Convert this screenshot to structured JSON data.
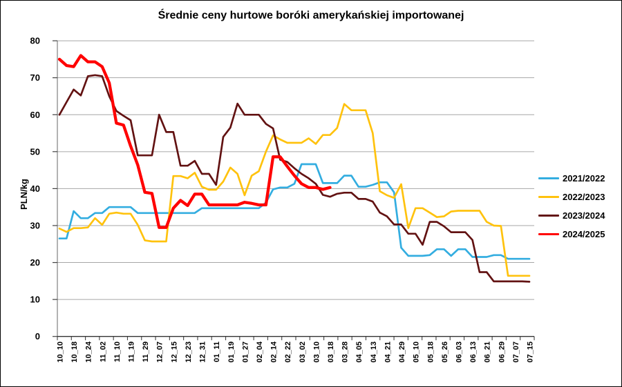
{
  "title": "Średnie ceny hurtowe boróki amerykańskiej importowanej",
  "y_axis": {
    "label": "PLN/kg",
    "ticks": [
      0,
      10,
      20,
      30,
      40,
      50,
      60,
      70,
      80
    ]
  },
  "colors": {
    "grid": "#A6A6A6",
    "axis": "#808080",
    "tick": "#404040",
    "x_axis_line": "#333333",
    "text": "#000000"
  },
  "chart_data": {
    "type": "line",
    "title": "Średnie ceny hurtowe boróki amerykańskiej importowanej",
    "ylabel": "PLN/kg",
    "ylim": [
      0,
      80
    ],
    "grid": true,
    "legend_position": "right",
    "categories": [
      "10_10",
      "10_18",
      "10_24",
      "11_02",
      "11_10",
      "11_19",
      "11_29",
      "12_07",
      "12_15",
      "12_23",
      "12_31",
      "01_11",
      "01_19",
      "01_27",
      "02_04",
      "02_14",
      "02_22",
      "03_02",
      "03_10",
      "03_18",
      "03_28",
      "04_05",
      "04_13",
      "04_21",
      "04_29",
      "05_10",
      "05_18",
      "05_26",
      "06_03",
      "06_13",
      "06_21",
      "06_29",
      "07_07",
      "07_15"
    ],
    "samples_per_category": 2,
    "note": "weekly price series sampled at two points per labeled date; values in PLN/kg",
    "series": [
      {
        "name": "2021/2022",
        "color": "#33ADE0",
        "line_width": 2.7,
        "values": [
          26.5,
          26.5,
          33.9,
          32,
          32,
          33.4,
          33.4,
          35,
          35,
          35,
          35,
          33.4,
          33.4,
          33.4,
          33.4,
          33.4,
          33.4,
          33.4,
          33.4,
          33.4,
          34.7,
          34.7,
          34.7,
          34.7,
          34.7,
          34.7,
          34.7,
          34.7,
          34.7,
          36.2,
          39.8,
          40.3,
          40.3,
          41.3,
          46.6,
          46.6,
          46.6,
          41.5,
          41.5,
          41.5,
          43.5,
          43.5,
          40.5,
          40.5,
          41,
          41.7,
          41.7,
          39,
          24,
          21.8,
          21.8,
          21.8,
          22,
          23.6,
          23.6,
          21.8,
          23.6,
          23.6,
          21.5,
          21.5,
          21.5,
          22,
          22,
          21,
          21,
          21,
          21
        ]
      },
      {
        "name": "2022/2023",
        "color": "#FFC20D",
        "line_width": 2.7,
        "values": [
          29.2,
          28.3,
          29.3,
          29.3,
          29.5,
          32,
          30.2,
          33.2,
          33.5,
          33.2,
          33.2,
          30.2,
          26,
          25.7,
          25.7,
          25.7,
          43.4,
          43.4,
          42.8,
          44.3,
          40.5,
          39.7,
          39.7,
          41.9,
          45.7,
          44,
          38.2,
          43.5,
          44.7,
          50,
          54.4,
          53.3,
          52.4,
          52.4,
          52.4,
          53.6,
          52.1,
          54.5,
          54.5,
          56.4,
          62.9,
          61.2,
          61.2,
          61.2,
          55,
          39.3,
          38.2,
          37.5,
          41.2,
          29.3,
          34.7,
          34.7,
          33.5,
          32.3,
          32.5,
          33.8,
          34,
          34,
          34,
          34,
          31,
          30,
          29.9,
          16.4,
          16.4,
          16.4,
          16.4
        ]
      },
      {
        "name": "2023/2024",
        "color": "#621212",
        "line_width": 2.7,
        "values": [
          60,
          63.4,
          66.8,
          65.2,
          70.4,
          70.7,
          70.4,
          65,
          61,
          59.7,
          58.5,
          49,
          49,
          49,
          60,
          55.3,
          55.3,
          46.2,
          46.2,
          47.5,
          44,
          44,
          41,
          54,
          56.5,
          63,
          60,
          60,
          60,
          57.5,
          56.3,
          47.8,
          47.2,
          45.5,
          44,
          42.8,
          41.3,
          38.3,
          37.8,
          38.6,
          38.9,
          38.9,
          37.2,
          37.2,
          36.5,
          33.5,
          32.5,
          30.3,
          30.3,
          27.8,
          27.8,
          24.8,
          31,
          31,
          29.8,
          28.2,
          28.2,
          28.2,
          26.1,
          17.4,
          17.4,
          14.9,
          14.9,
          14.9,
          14.9,
          14.9,
          14.8
        ]
      },
      {
        "name": "2024/2025",
        "color": "#FF0000",
        "line_width": 4.3,
        "values": [
          75,
          73.3,
          73,
          76,
          74.3,
          74.3,
          73,
          68.6,
          57.7,
          57.2,
          51.5,
          46.4,
          39,
          38.7,
          29.5,
          29.5,
          34.7,
          36.8,
          35.4,
          38.5,
          38.5,
          35.6,
          35.6,
          35.6,
          35.6,
          35.6,
          36.3,
          36,
          35.6,
          35.6,
          48.6,
          48.6,
          46,
          43.5,
          41.3,
          40.3,
          40.3,
          39.8,
          40.3,
          null,
          null,
          null,
          null,
          null,
          null,
          null,
          null,
          null,
          null,
          null,
          null,
          null,
          null,
          null,
          null,
          null,
          null,
          null,
          null,
          null,
          null,
          null,
          null,
          null,
          null,
          null,
          null
        ]
      }
    ]
  }
}
